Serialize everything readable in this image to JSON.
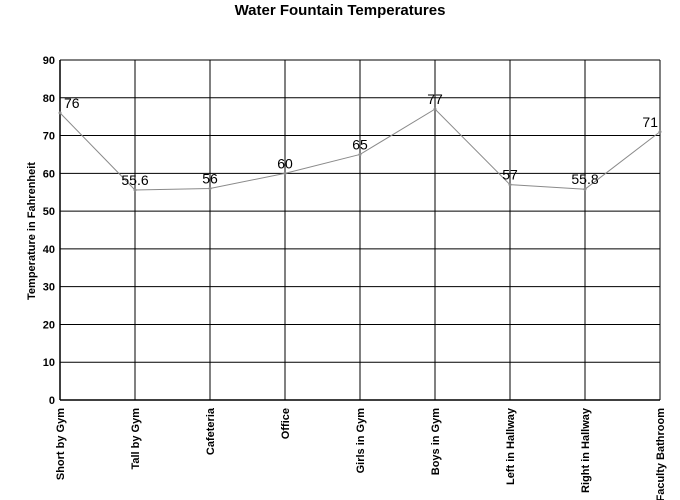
{
  "chart_data": {
    "type": "line",
    "title": "Water Fountain Temperatures",
    "xlabel": "",
    "ylabel": "Temperature in Fahrenheit",
    "ylim": [
      0,
      90
    ],
    "yticks": [
      0,
      10,
      20,
      30,
      40,
      50,
      60,
      70,
      80,
      90
    ],
    "categories": [
      "Short by Gym",
      "Tall by Gym",
      "Cafeteria",
      "Office",
      "Girls in Gym",
      "Boys in Gym",
      "Left in Hallway",
      "Right in Hallway",
      "Faculty Bathroom"
    ],
    "series": [
      {
        "values": [
          76,
          55.6,
          56,
          60,
          65,
          77,
          57,
          55.8,
          71
        ],
        "color": "#8a8a8a"
      }
    ],
    "data_labels": [
      "76",
      "55.6",
      "56",
      "60",
      "65",
      "77",
      "57",
      "55.8",
      "71"
    ],
    "grid": true,
    "legend": "none"
  }
}
